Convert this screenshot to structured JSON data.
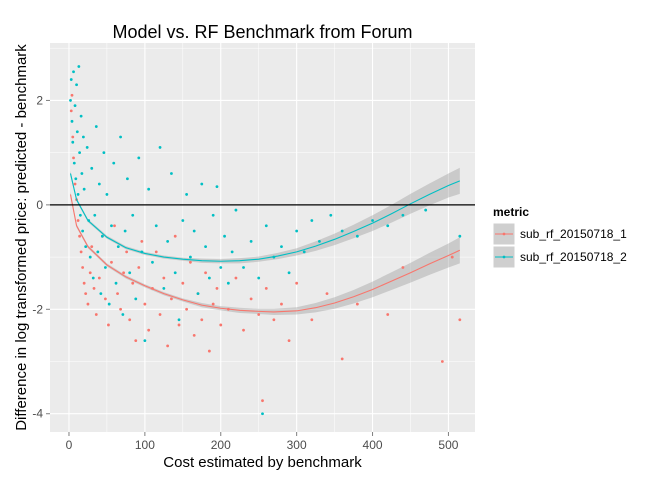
{
  "chart_data": {
    "type": "scatter",
    "title": "Model vs. RF Benchmark from Forum",
    "xlabel": "Cost estimated by benchmark",
    "ylabel": "Difference in log transformed price: predicted - benchmark",
    "xlim": [
      -25,
      535
    ],
    "ylim": [
      -4.35,
      3.1
    ],
    "x_ticks": [
      0,
      100,
      200,
      300,
      400,
      500
    ],
    "y_ticks": [
      -4,
      -2,
      0,
      2
    ],
    "reference_line_y": 0,
    "grid": true,
    "panel_background": "#ebebeb",
    "legend": {
      "title": "metric",
      "placement": "right",
      "entries": [
        "sub_rf_20150718_1",
        "sub_rf_20150718_2"
      ]
    },
    "series": [
      {
        "name": "sub_rf_20150718_1",
        "color": "#f8766d",
        "smooth": {
          "x": [
            2,
            10,
            25,
            50,
            75,
            100,
            125,
            150,
            175,
            200,
            225,
            250,
            270,
            300,
            325,
            350,
            375,
            400,
            425,
            450,
            475,
            500,
            515
          ],
          "y": [
            0.2,
            -0.4,
            -0.8,
            -1.15,
            -1.38,
            -1.55,
            -1.7,
            -1.82,
            -1.92,
            -1.98,
            -2.02,
            -2.04,
            -2.05,
            -2.03,
            -1.97,
            -1.88,
            -1.76,
            -1.62,
            -1.46,
            -1.3,
            -1.13,
            -0.97,
            -0.87
          ],
          "band_halfwidth": [
            0.05,
            0.03,
            0.03,
            0.03,
            0.03,
            0.03,
            0.03,
            0.03,
            0.04,
            0.04,
            0.05,
            0.05,
            0.06,
            0.07,
            0.09,
            0.11,
            0.13,
            0.15,
            0.17,
            0.19,
            0.21,
            0.23,
            0.25
          ]
        },
        "points": [
          [
            3,
            1.8
          ],
          [
            4,
            2.1
          ],
          [
            5,
            1.3
          ],
          [
            6,
            0.9
          ],
          [
            8,
            0.4
          ],
          [
            10,
            0.1
          ],
          [
            12,
            -0.3
          ],
          [
            14,
            -0.6
          ],
          [
            16,
            -0.9
          ],
          [
            18,
            -1.2
          ],
          [
            20,
            -1.5
          ],
          [
            22,
            -1.7
          ],
          [
            25,
            -1.9
          ],
          [
            28,
            -1.3
          ],
          [
            30,
            -0.8
          ],
          [
            33,
            -1.6
          ],
          [
            36,
            -2.1
          ],
          [
            40,
            -1.4
          ],
          [
            44,
            -0.6
          ],
          [
            48,
            -1.8
          ],
          [
            52,
            -2.3
          ],
          [
            56,
            -1.1
          ],
          [
            60,
            -0.4
          ],
          [
            64,
            -1.7
          ],
          [
            68,
            -2.0
          ],
          [
            72,
            -1.3
          ],
          [
            76,
            -0.9
          ],
          [
            80,
            -2.2
          ],
          [
            84,
            -1.5
          ],
          [
            88,
            -2.6
          ],
          [
            92,
            -1.2
          ],
          [
            96,
            -0.7
          ],
          [
            100,
            -1.9
          ],
          [
            105,
            -2.4
          ],
          [
            110,
            -1.6
          ],
          [
            115,
            -0.9
          ],
          [
            120,
            -2.1
          ],
          [
            125,
            -1.4
          ],
          [
            130,
            -2.7
          ],
          [
            135,
            -1.8
          ],
          [
            140,
            -0.6
          ],
          [
            145,
            -2.3
          ],
          [
            150,
            -1.5
          ],
          [
            155,
            -2.0
          ],
          [
            160,
            -1.1
          ],
          [
            165,
            -2.5
          ],
          [
            170,
            -1.7
          ],
          [
            175,
            -2.2
          ],
          [
            180,
            -1.3
          ],
          [
            185,
            -2.8
          ],
          [
            190,
            -1.9
          ],
          [
            195,
            -1.6
          ],
          [
            200,
            -2.3
          ],
          [
            210,
            -2.0
          ],
          [
            220,
            -1.4
          ],
          [
            230,
            -2.4
          ],
          [
            240,
            -1.8
          ],
          [
            250,
            -2.1
          ],
          [
            255,
            -3.75
          ],
          [
            260,
            -1.6
          ],
          [
            270,
            -2.2
          ],
          [
            280,
            -1.9
          ],
          [
            290,
            -2.6
          ],
          [
            300,
            -1.5
          ],
          [
            320,
            -2.2
          ],
          [
            340,
            -1.7
          ],
          [
            360,
            -2.95
          ],
          [
            380,
            -1.9
          ],
          [
            420,
            -2.1
          ],
          [
            440,
            -1.2
          ],
          [
            492,
            -3.0
          ],
          [
            505,
            -1.0
          ],
          [
            515,
            -2.2
          ]
        ]
      },
      {
        "name": "sub_rf_20150718_2",
        "color": "#00bfc4",
        "smooth": {
          "x": [
            2,
            10,
            25,
            50,
            75,
            100,
            125,
            150,
            175,
            200,
            225,
            250,
            275,
            300,
            325,
            350,
            375,
            400,
            425,
            450,
            475,
            500,
            515
          ],
          "y": [
            0.6,
            0.1,
            -0.3,
            -0.62,
            -0.82,
            -0.93,
            -1.0,
            -1.04,
            -1.07,
            -1.08,
            -1.07,
            -1.04,
            -0.98,
            -0.9,
            -0.79,
            -0.66,
            -0.51,
            -0.35,
            -0.17,
            0.02,
            0.2,
            0.37,
            0.46
          ],
          "band_halfwidth": [
            0.05,
            0.03,
            0.03,
            0.03,
            0.03,
            0.03,
            0.03,
            0.03,
            0.04,
            0.04,
            0.05,
            0.05,
            0.06,
            0.07,
            0.09,
            0.11,
            0.13,
            0.15,
            0.17,
            0.19,
            0.21,
            0.23,
            0.25
          ]
        },
        "points": [
          [
            2,
            2.0
          ],
          [
            3,
            2.4
          ],
          [
            4,
            1.6
          ],
          [
            5,
            1.2
          ],
          [
            6,
            2.55
          ],
          [
            7,
            0.8
          ],
          [
            8,
            1.9
          ],
          [
            9,
            0.5
          ],
          [
            10,
            2.3
          ],
          [
            11,
            1.4
          ],
          [
            12,
            0.2
          ],
          [
            13,
            2.65
          ],
          [
            14,
            1.0
          ],
          [
            15,
            -0.2
          ],
          [
            16,
            1.7
          ],
          [
            17,
            0.6
          ],
          [
            18,
            -0.5
          ],
          [
            19,
            1.3
          ],
          [
            20,
            0.3
          ],
          [
            22,
            -0.8
          ],
          [
            24,
            1.1
          ],
          [
            26,
            -0.3
          ],
          [
            28,
            -1.0
          ],
          [
            30,
            0.7
          ],
          [
            32,
            -1.4
          ],
          [
            34,
            -0.2
          ],
          [
            36,
            1.5
          ],
          [
            38,
            -0.9
          ],
          [
            40,
            0.4
          ],
          [
            42,
            -1.7
          ],
          [
            44,
            -0.6
          ],
          [
            46,
            1.0
          ],
          [
            48,
            -1.2
          ],
          [
            50,
            0.2
          ],
          [
            53,
            -1.9
          ],
          [
            56,
            -0.4
          ],
          [
            59,
            0.8
          ],
          [
            62,
            -1.5
          ],
          [
            65,
            -0.8
          ],
          [
            68,
            1.3
          ],
          [
            71,
            -2.1
          ],
          [
            74,
            -0.5
          ],
          [
            77,
            0.5
          ],
          [
            80,
            -1.3
          ],
          [
            84,
            -0.2
          ],
          [
            88,
            -1.8
          ],
          [
            92,
            0.9
          ],
          [
            96,
            -0.9
          ],
          [
            100,
            -2.6
          ],
          [
            105,
            0.3
          ],
          [
            110,
            -1.1
          ],
          [
            115,
            -0.4
          ],
          [
            120,
            1.1
          ],
          [
            125,
            -1.6
          ],
          [
            130,
            -0.7
          ],
          [
            135,
            0.6
          ],
          [
            140,
            -1.3
          ],
          [
            145,
            -2.2
          ],
          [
            150,
            -0.3
          ],
          [
            155,
            0.2
          ],
          [
            160,
            -1.0
          ],
          [
            165,
            -0.5
          ],
          [
            170,
            -1.7
          ],
          [
            175,
            0.4
          ],
          [
            180,
            -0.8
          ],
          [
            185,
            -1.4
          ],
          [
            190,
            -0.2
          ],
          [
            195,
            0.35
          ],
          [
            200,
            -1.2
          ],
          [
            205,
            -0.6
          ],
          [
            210,
            -1.5
          ],
          [
            215,
            -0.9
          ],
          [
            220,
            -0.1
          ],
          [
            230,
            -1.2
          ],
          [
            240,
            -0.7
          ],
          [
            250,
            -1.4
          ],
          [
            255,
            -4.0
          ],
          [
            260,
            -0.4
          ],
          [
            270,
            -1.0
          ],
          [
            280,
            -0.8
          ],
          [
            290,
            -1.3
          ],
          [
            300,
            -0.5
          ],
          [
            310,
            -0.9
          ],
          [
            320,
            -0.3
          ],
          [
            330,
            -0.7
          ],
          [
            345,
            -0.2
          ],
          [
            360,
            -0.5
          ],
          [
            380,
            -0.6
          ],
          [
            400,
            -0.3
          ],
          [
            420,
            -0.4
          ],
          [
            440,
            -0.2
          ],
          [
            470,
            -0.1
          ],
          [
            515,
            -0.6
          ]
        ]
      }
    ]
  }
}
